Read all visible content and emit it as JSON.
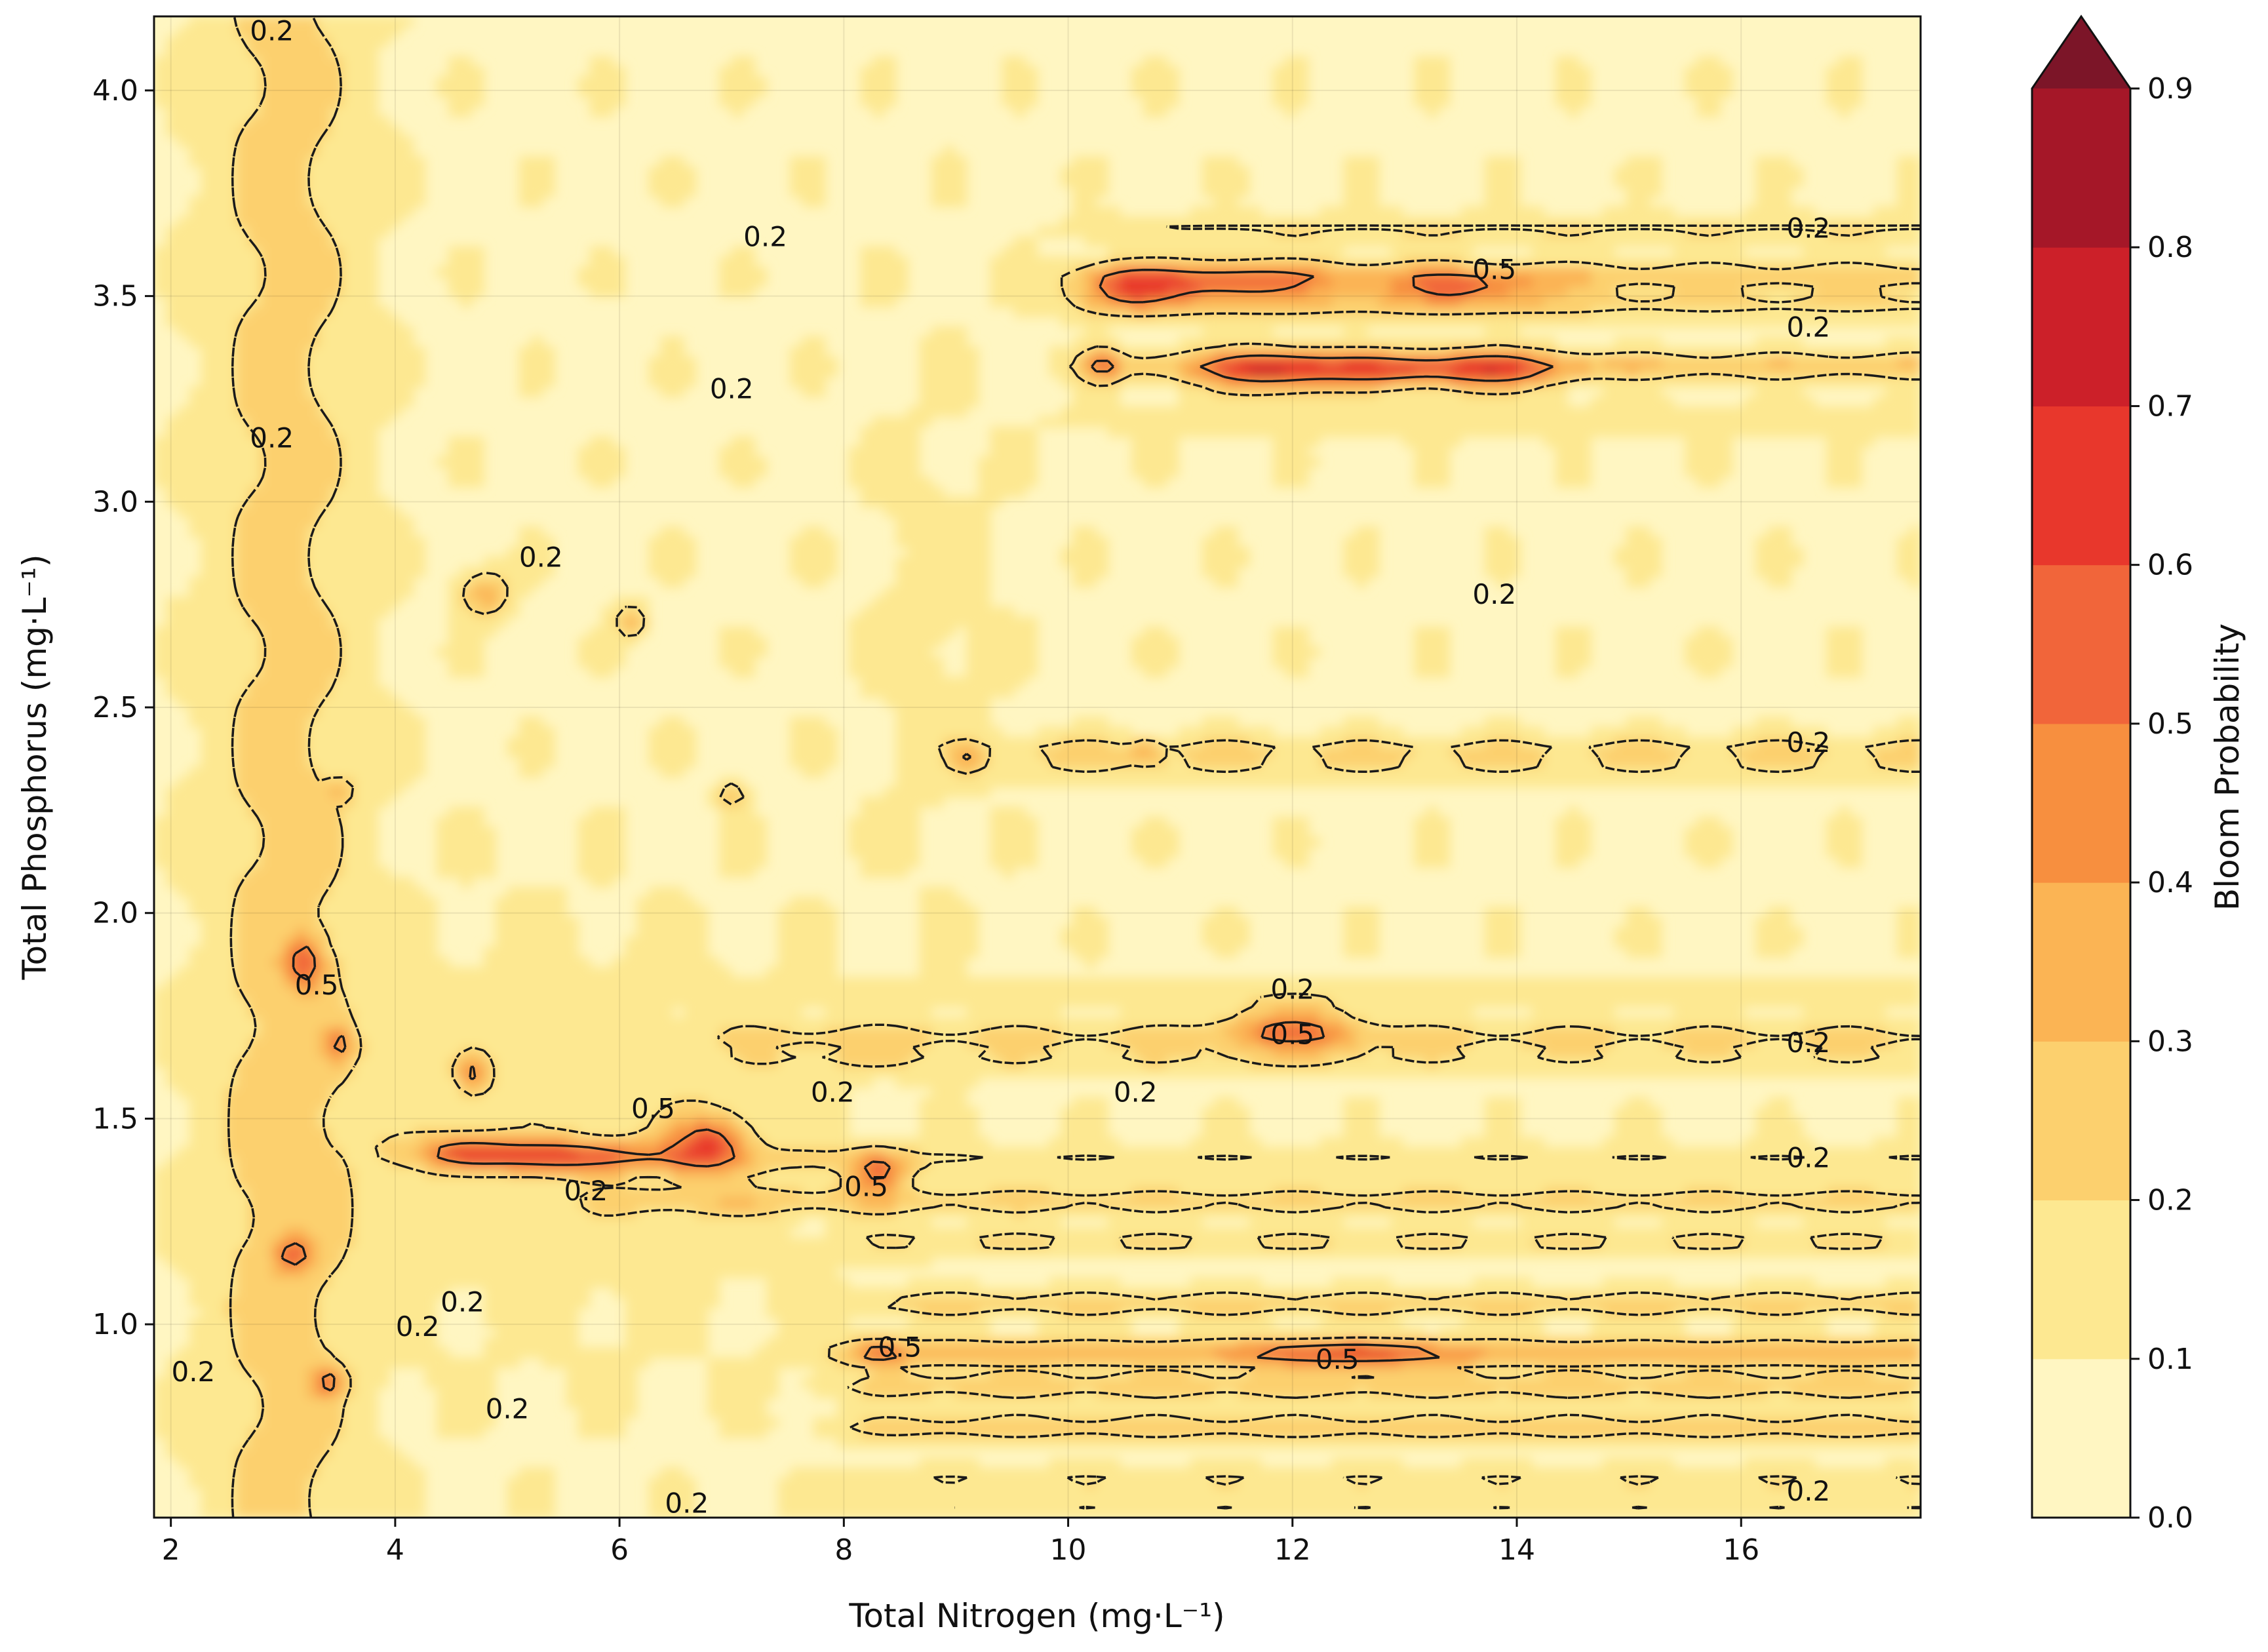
{
  "chart_data": {
    "type": "heatmap",
    "subtype": "filled-contour",
    "title": "",
    "xlabel": "Total Nitrogen (mg·L⁻¹)",
    "ylabel": "Total Phosphorus (mg·L⁻¹)",
    "colorbar_label": "Bloom Probability",
    "xlim": [
      1.85,
      17.6
    ],
    "ylim": [
      0.53,
      4.18
    ],
    "x_ticks": [
      2,
      4,
      6,
      8,
      10,
      12,
      14,
      16
    ],
    "x_tick_labels": [
      "2",
      "4",
      "6",
      "8",
      "10",
      "12",
      "14",
      "16"
    ],
    "y_ticks": [
      1.0,
      1.5,
      2.0,
      2.5,
      3.0,
      3.5,
      4.0
    ],
    "y_tick_labels": [
      "1.0",
      "1.5",
      "2.0",
      "2.5",
      "3.0",
      "3.5",
      "4.0"
    ],
    "grid": true,
    "colorbar": {
      "levels": [
        0.0,
        0.1,
        0.2,
        0.3,
        0.4,
        0.5,
        0.6,
        0.7,
        0.8,
        0.9
      ],
      "tick_labels": [
        "0.0",
        "0.1",
        "0.2",
        "0.3",
        "0.4",
        "0.5",
        "0.6",
        "0.7",
        "0.8",
        "0.9"
      ],
      "colors": [
        "#fff6c2",
        "#fde891",
        "#fcd06e",
        "#fbb454",
        "#f78f3f",
        "#f1653a",
        "#e8372c",
        "#cc2029",
        "#a51728",
        "#7c1528"
      ],
      "extend": "max"
    },
    "contour_lines": [
      {
        "level": 0.2,
        "style": "dashed",
        "label": "0.2"
      },
      {
        "level": 0.5,
        "style": "solid",
        "label": "0.5"
      }
    ],
    "horizontal_bands": [
      {
        "y": 3.66,
        "x_from": 10.2,
        "value": 0.22
      },
      {
        "y": 3.55,
        "x_from": 10.2,
        "value": 0.3
      },
      {
        "y": 3.48,
        "x_from": 10.2,
        "value": 0.24
      },
      {
        "y": 3.33,
        "x_from": 10.2,
        "value": 0.33
      },
      {
        "y": 3.2,
        "x_from": 10.2,
        "value": 0.2
      },
      {
        "y": 2.4,
        "x_from": 9.0,
        "value": 0.22
      },
      {
        "y": 2.35,
        "x_from": 9.0,
        "value": 0.19
      },
      {
        "y": 1.8,
        "x_from": 7.0,
        "value": 0.17
      },
      {
        "y": 1.7,
        "x_from": 7.0,
        "value": 0.24
      },
      {
        "y": 1.64,
        "x_from": 7.0,
        "value": 0.2
      },
      {
        "y": 1.4,
        "x_from": 6.0,
        "value": 0.2
      },
      {
        "y": 1.3,
        "x_from": 6.0,
        "value": 0.26
      },
      {
        "y": 1.2,
        "x_from": 8.0,
        "value": 0.22
      },
      {
        "y": 1.05,
        "x_from": 8.0,
        "value": 0.27
      },
      {
        "y": 0.93,
        "x_from": 8.0,
        "value": 0.36
      },
      {
        "y": 0.85,
        "x_from": 8.0,
        "value": 0.29
      },
      {
        "y": 0.75,
        "x_from": 8.0,
        "value": 0.28
      },
      {
        "y": 0.62,
        "x_from": 8.0,
        "value": 0.19
      },
      {
        "y": 0.55,
        "x_from": 8.0,
        "value": 0.17
      }
    ],
    "hotspots": [
      {
        "x": 10.5,
        "y": 3.52,
        "sx": 0.45,
        "sy": 0.05,
        "value": 0.55
      },
      {
        "x": 11.5,
        "y": 3.53,
        "sx": 0.8,
        "sy": 0.045,
        "value": 0.52
      },
      {
        "x": 13.5,
        "y": 3.52,
        "sx": 0.8,
        "sy": 0.04,
        "value": 0.48
      },
      {
        "x": 11.8,
        "y": 3.32,
        "sx": 0.6,
        "sy": 0.05,
        "value": 0.6
      },
      {
        "x": 13.8,
        "y": 3.32,
        "sx": 0.6,
        "sy": 0.045,
        "value": 0.55
      },
      {
        "x": 12.8,
        "y": 3.32,
        "sx": 0.6,
        "sy": 0.04,
        "value": 0.47
      },
      {
        "x": 10.3,
        "y": 3.33,
        "sx": 0.15,
        "sy": 0.04,
        "value": 0.5
      },
      {
        "x": 12.0,
        "y": 1.72,
        "sx": 0.6,
        "sy": 0.05,
        "value": 0.5
      },
      {
        "x": 5.5,
        "y": 1.41,
        "sx": 0.9,
        "sy": 0.035,
        "value": 0.64
      },
      {
        "x": 4.6,
        "y": 1.42,
        "sx": 0.4,
        "sy": 0.035,
        "value": 0.52
      },
      {
        "x": 6.8,
        "y": 1.44,
        "sx": 0.35,
        "sy": 0.07,
        "value": 0.58
      },
      {
        "x": 8.3,
        "y": 1.37,
        "sx": 0.25,
        "sy": 0.05,
        "value": 0.55
      },
      {
        "x": 8.3,
        "y": 0.93,
        "sx": 0.25,
        "sy": 0.025,
        "value": 0.5
      },
      {
        "x": 12.5,
        "y": 0.93,
        "sx": 1.0,
        "sy": 0.025,
        "value": 0.52
      },
      {
        "x": 3.2,
        "y": 1.88,
        "sx": 0.15,
        "sy": 0.06,
        "value": 0.55
      },
      {
        "x": 3.5,
        "y": 1.68,
        "sx": 0.1,
        "sy": 0.04,
        "value": 0.52
      },
      {
        "x": 4.7,
        "y": 1.61,
        "sx": 0.12,
        "sy": 0.04,
        "value": 0.55
      },
      {
        "x": 3.1,
        "y": 1.17,
        "sx": 0.15,
        "sy": 0.035,
        "value": 0.55
      },
      {
        "x": 3.4,
        "y": 0.86,
        "sx": 0.1,
        "sy": 0.03,
        "value": 0.58
      },
      {
        "x": 6.1,
        "y": 2.71,
        "sx": 0.1,
        "sy": 0.035,
        "value": 0.52
      },
      {
        "x": 4.8,
        "y": 2.78,
        "sx": 0.2,
        "sy": 0.05,
        "value": 0.45
      },
      {
        "x": 9.1,
        "y": 2.38,
        "sx": 0.1,
        "sy": 0.02,
        "value": 0.5
      },
      {
        "x": 10.7,
        "y": 2.39,
        "sx": 0.1,
        "sy": 0.02,
        "value": 0.5
      },
      {
        "x": 7.0,
        "y": 2.29,
        "sx": 0.1,
        "sy": 0.02,
        "value": 0.5
      },
      {
        "x": 3.5,
        "y": 2.3,
        "sx": 0.08,
        "sy": 0.02,
        "value": 0.5
      }
    ],
    "label_positions": [
      {
        "x": 2.9,
        "y": 4.14,
        "text": "0.2"
      },
      {
        "x": 7.3,
        "y": 3.64,
        "text": "0.2"
      },
      {
        "x": 7.0,
        "y": 3.27,
        "text": "0.2"
      },
      {
        "x": 2.9,
        "y": 3.15,
        "text": "0.2"
      },
      {
        "x": 5.3,
        "y": 2.86,
        "text": "0.2"
      },
      {
        "x": 13.8,
        "y": 2.77,
        "text": "0.2"
      },
      {
        "x": 12.0,
        "y": 1.81,
        "text": "0.2"
      },
      {
        "x": 7.9,
        "y": 1.56,
        "text": "0.2"
      },
      {
        "x": 10.6,
        "y": 1.56,
        "text": "0.2"
      },
      {
        "x": 6.3,
        "y": 1.52,
        "text": "0.5"
      },
      {
        "x": 12.0,
        "y": 1.7,
        "text": "0.5"
      },
      {
        "x": 13.8,
        "y": 3.56,
        "text": "0.5"
      },
      {
        "x": 3.3,
        "y": 1.82,
        "text": "0.5"
      },
      {
        "x": 8.2,
        "y": 1.33,
        "text": "0.5"
      },
      {
        "x": 8.5,
        "y": 0.94,
        "text": "0.5"
      },
      {
        "x": 12.4,
        "y": 0.91,
        "text": "0.5"
      },
      {
        "x": 5.7,
        "y": 1.32,
        "text": "0.2"
      },
      {
        "x": 4.6,
        "y": 1.05,
        "text": "0.2"
      },
      {
        "x": 4.2,
        "y": 0.99,
        "text": "0.2"
      },
      {
        "x": 5.0,
        "y": 0.79,
        "text": "0.2"
      },
      {
        "x": 2.2,
        "y": 0.88,
        "text": "0.2"
      },
      {
        "x": 6.6,
        "y": 0.56,
        "text": "0.2"
      },
      {
        "x": 16.6,
        "y": 3.66,
        "text": "0.2"
      },
      {
        "x": 16.6,
        "y": 3.42,
        "text": "0.2"
      },
      {
        "x": 16.6,
        "y": 2.41,
        "text": "0.2"
      },
      {
        "x": 16.6,
        "y": 1.68,
        "text": "0.2"
      },
      {
        "x": 16.6,
        "y": 1.4,
        "text": "0.2"
      },
      {
        "x": 16.6,
        "y": 0.59,
        "text": "0.2"
      }
    ]
  }
}
